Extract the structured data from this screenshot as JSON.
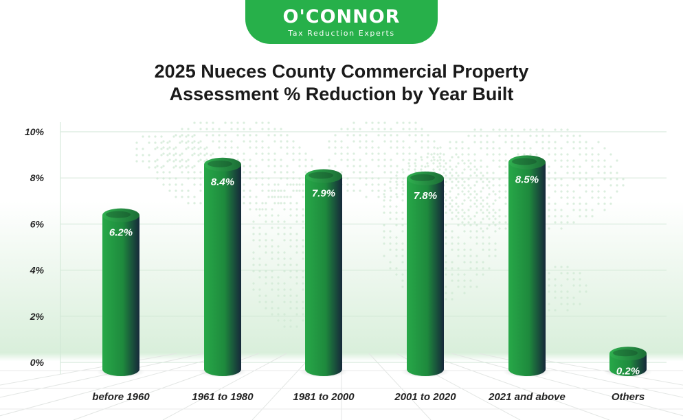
{
  "brand": {
    "name": "O'CONNOR",
    "tagline": "Tax Reduction Experts",
    "color": "#27b04a"
  },
  "chart_data": {
    "type": "bar",
    "title_line1": "2025 Nueces County Commercial Property",
    "title_line2": "Assessment % Reduction by Year Built",
    "categories": [
      "before 1960",
      "1961 to 1980",
      "1981 to 2000",
      "2001 to 2020",
      "2021 and above",
      "Others"
    ],
    "values": [
      6.2,
      8.4,
      7.9,
      7.8,
      8.5,
      0.2
    ],
    "data_labels": [
      "6.2%",
      "8.4%",
      "7.9%",
      "7.8%",
      "8.5%",
      "0.2%"
    ],
    "yticks": [
      "0%",
      "2%",
      "4%",
      "6%",
      "8%",
      "10%"
    ],
    "ylim": [
      0,
      10
    ],
    "xlabel": "",
    "ylabel": "",
    "grid": true,
    "bar_style": "3d-cylinder",
    "bar_color": "#1d8f3e"
  }
}
